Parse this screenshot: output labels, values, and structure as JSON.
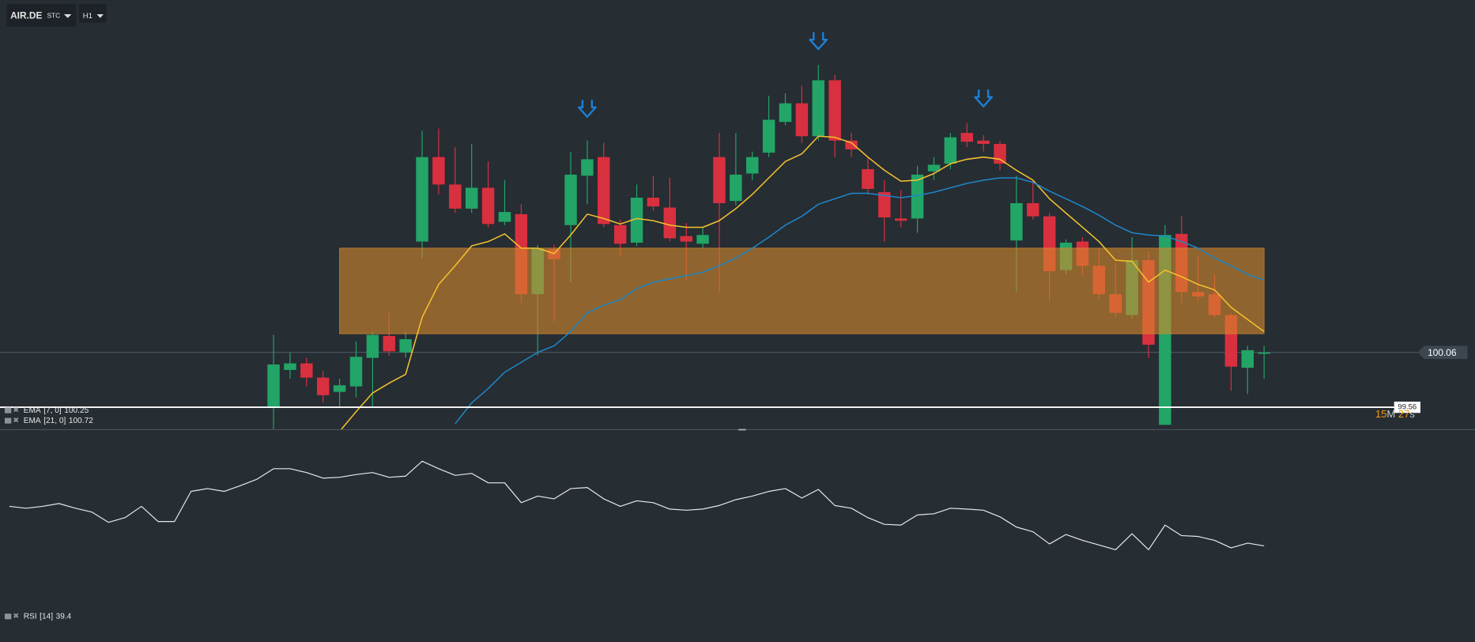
{
  "chart_data": {
    "type": "candlestick",
    "symbol": "AIR.DE",
    "asset_type": "STC",
    "timeframe": "H1",
    "up_color": "#22a566",
    "down_color": "#d9303f",
    "ylim": [
      99.36,
      103.27
    ],
    "open": [
      null,
      null,
      null,
      null,
      null,
      null,
      null,
      null,
      null,
      null,
      null,
      null,
      null,
      null,
      null,
      null,
      99.56,
      99.9,
      99.96,
      99.83,
      99.7,
      99.75,
      100.01,
      100.21,
      100.06,
      101.07,
      101.84,
      101.59,
      101.37,
      101.56,
      101.25,
      101.32,
      100.59,
      101.0,
      101.22,
      101.67,
      101.84,
      101.22,
      101.06,
      101.47,
      101.38,
      101.12,
      101.05,
      101.84,
      101.44,
      101.69,
      101.88,
      102.16,
      102.33,
      102.03,
      102.54,
      101.99,
      101.73,
      101.52,
      101.28,
      101.28,
      101.71,
      101.78,
      102.06,
      101.99,
      101.96,
      101.08,
      101.42,
      101.3,
      100.81,
      101.07,
      100.85,
      100.59,
      100.4,
      100.9,
      99.4,
      101.14,
      100.61,
      100.59,
      100.4,
      99.92,
      100.05
    ],
    "high": [
      null,
      null,
      null,
      null,
      null,
      null,
      null,
      null,
      null,
      null,
      null,
      null,
      null,
      null,
      null,
      null,
      100.22,
      100.06,
      100.01,
      99.89,
      99.82,
      100.16,
      100.25,
      100.42,
      100.25,
      102.08,
      102.1,
      101.93,
      101.96,
      101.8,
      101.63,
      101.41,
      101.04,
      101.04,
      101.89,
      101.99,
      101.97,
      101.27,
      101.59,
      101.67,
      101.65,
      101.24,
      101.2,
      102.06,
      102.06,
      101.89,
      102.4,
      102.42,
      102.49,
      102.68,
      102.59,
      102.06,
      101.84,
      101.63,
      101.54,
      101.76,
      101.84,
      102.06,
      102.15,
      102.04,
      101.99,
      101.67,
      101.63,
      101.33,
      101.09,
      101.11,
      101.01,
      100.87,
      101.11,
      100.98,
      101.22,
      101.3,
      100.94,
      100.77,
      100.42,
      100.12,
      100.12
    ],
    "low": [
      null,
      null,
      null,
      null,
      null,
      null,
      null,
      null,
      null,
      null,
      null,
      null,
      null,
      null,
      null,
      null,
      99.34,
      99.82,
      99.75,
      99.6,
      99.56,
      99.65,
      99.56,
      100.03,
      100.01,
      100.92,
      101.5,
      101.33,
      101.33,
      101.2,
      101.22,
      100.51,
      100.03,
      100.34,
      100.7,
      101.41,
      101.2,
      100.94,
      101.03,
      101.35,
      101.07,
      100.72,
      101.01,
      100.61,
      101.4,
      101.63,
      101.84,
      102.13,
      101.97,
      101.99,
      101.84,
      101.84,
      101.5,
      101.07,
      101.2,
      101.15,
      101.63,
      101.73,
      101.93,
      101.89,
      101.72,
      100.61,
      101.27,
      100.53,
      100.77,
      100.77,
      100.54,
      100.38,
      100.37,
      100.01,
      99.4,
      100.51,
      100.53,
      100.38,
      99.71,
      99.68,
      99.82
    ],
    "close": [
      null,
      null,
      null,
      null,
      null,
      null,
      null,
      null,
      null,
      null,
      null,
      null,
      null,
      null,
      null,
      null,
      99.95,
      99.96,
      99.83,
      99.67,
      99.76,
      100.02,
      100.22,
      100.07,
      100.18,
      101.84,
      101.59,
      101.37,
      101.56,
      101.23,
      101.34,
      100.59,
      101.01,
      100.91,
      101.68,
      101.82,
      101.23,
      101.05,
      101.47,
      101.39,
      101.1,
      101.07,
      101.13,
      101.42,
      101.68,
      101.84,
      102.18,
      102.33,
      102.03,
      102.54,
      101.99,
      101.91,
      101.55,
      101.29,
      101.26,
      101.68,
      101.77,
      102.02,
      101.98,
      101.96,
      101.78,
      101.42,
      101.3,
      100.8,
      101.06,
      100.85,
      100.59,
      100.42,
      100.9,
      100.13,
      101.13,
      100.61,
      100.57,
      100.4,
      99.93,
      100.08,
      100.06
    ],
    "indicators": [
      {
        "name": "EMA",
        "params": "[7, 0]",
        "color": "#f2c12e",
        "values": [
          null,
          null,
          null,
          null,
          null,
          null,
          null,
          null,
          null,
          null,
          null,
          null,
          null,
          null,
          null,
          null,
          null,
          null,
          null,
          null,
          99.34,
          99.52,
          99.69,
          99.78,
          99.86,
          100.38,
          100.68,
          100.85,
          101.03,
          101.07,
          101.14,
          101.01,
          101.01,
          100.96,
          101.13,
          101.32,
          101.28,
          101.23,
          101.28,
          101.26,
          101.22,
          101.2,
          101.2,
          101.26,
          101.37,
          101.5,
          101.65,
          101.8,
          101.87,
          102.03,
          102.02,
          101.97,
          101.84,
          101.72,
          101.62,
          101.63,
          101.69,
          101.78,
          101.82,
          101.84,
          101.82,
          101.72,
          101.63,
          101.46,
          101.33,
          101.2,
          101.07,
          100.9,
          100.89,
          100.7,
          100.81,
          100.75,
          100.68,
          100.63,
          100.47,
          100.36,
          100.25
        ]
      },
      {
        "name": "EMA",
        "params": "[21, 0]",
        "color": "#1f86c8",
        "values": [
          null,
          null,
          null,
          null,
          null,
          null,
          null,
          null,
          null,
          null,
          null,
          null,
          null,
          null,
          null,
          null,
          null,
          null,
          null,
          null,
          null,
          null,
          null,
          null,
          null,
          null,
          null,
          99.41,
          99.6,
          99.73,
          99.88,
          99.97,
          100.06,
          100.12,
          100.25,
          100.42,
          100.49,
          100.54,
          100.64,
          100.7,
          100.73,
          100.76,
          100.79,
          100.85,
          100.92,
          101.01,
          101.11,
          101.22,
          101.3,
          101.41,
          101.46,
          101.51,
          101.51,
          101.49,
          101.47,
          101.49,
          101.52,
          101.56,
          101.6,
          101.63,
          101.65,
          101.65,
          101.61,
          101.53,
          101.46,
          101.39,
          101.31,
          101.22,
          101.15,
          101.13,
          101.12,
          101.07,
          101.01,
          100.92,
          100.85,
          100.77,
          100.72
        ]
      }
    ],
    "rsi": {
      "name": "RSI",
      "params": "[14]",
      "color": "#e8e8e8",
      "ylim": [
        4.7,
        80.9
      ],
      "values": [
        53.7,
        53.0,
        53.7,
        54.7,
        53.0,
        51.6,
        47.9,
        49.6,
        53.7,
        48.2,
        48.2,
        59.1,
        60.1,
        59.1,
        61.2,
        63.5,
        67.3,
        67.3,
        65.9,
        63.9,
        64.2,
        65.2,
        65.9,
        64.2,
        64.6,
        70.0,
        67.3,
        64.9,
        65.6,
        62.2,
        62.2,
        55.0,
        57.4,
        56.4,
        60.1,
        60.5,
        56.4,
        53.7,
        55.7,
        55.0,
        52.7,
        52.3,
        52.7,
        54.0,
        56.1,
        57.4,
        59.1,
        60.1,
        56.7,
        59.8,
        54.0,
        53.0,
        49.6,
        47.2,
        46.9,
        50.6,
        51.0,
        53.0,
        52.7,
        52.3,
        49.9,
        46.2,
        44.5,
        40.1,
        43.5,
        41.4,
        39.7,
        38.0,
        43.8,
        38.0,
        46.9,
        43.1,
        42.8,
        41.4,
        38.7,
        40.4,
        39.4
      ]
    },
    "zone": {
      "high": 101.01,
      "low": 100.23,
      "color": "#d6882c"
    },
    "current_price": 100.06,
    "level": 99.56,
    "countdown": [
      "15",
      "M",
      "27",
      "s"
    ]
  }
}
